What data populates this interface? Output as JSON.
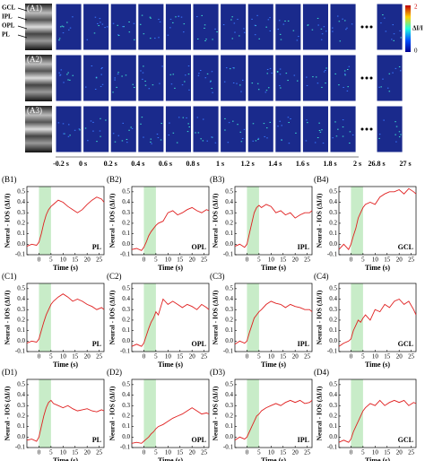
{
  "image_panel": {
    "row_labels": [
      "(A1)",
      "(A2)",
      "(A3)"
    ],
    "layer_labels": [
      "GCL",
      "IPL",
      "OPL",
      "PL"
    ],
    "time_labels": [
      "-0.2 s",
      "0 s",
      "0.2 s",
      "0.4 s",
      "0.6 s",
      "0.8 s",
      "1 s",
      "1.2 s",
      "1.4 s",
      "1.6 s",
      "1.8 s",
      "2 s",
      "26.8 s",
      "27 s"
    ],
    "colorbar": {
      "label": "ΔI/I",
      "max_label": "2",
      "min_label": "0"
    }
  },
  "chart_data": [
    {
      "type": "line",
      "panel": "(B1)",
      "layer": "PL",
      "y_label": "Neural - IOS (ΔI/I)",
      "x_label": "Time (s)",
      "color": "#e02020",
      "stim": [
        0,
        5
      ],
      "xlim": [
        -5,
        27
      ],
      "ylim": [
        -0.1,
        0.55
      ],
      "xticks": [
        0,
        5,
        10,
        15,
        20,
        25
      ],
      "yticks": [
        -0.1,
        {
          "value": 0,
          "label": "0.0"
        },
        0.1,
        0.2,
        0.3,
        0.4,
        0.5
      ],
      "x": [
        -5,
        -3,
        -1,
        0,
        1,
        2,
        3,
        4,
        5,
        6,
        8,
        10,
        12,
        14,
        16,
        18,
        20,
        22,
        24,
        26,
        27
      ],
      "values": [
        -0.02,
        0.0,
        -0.01,
        0.02,
        0.1,
        0.2,
        0.28,
        0.33,
        0.36,
        0.38,
        0.42,
        0.4,
        0.36,
        0.33,
        0.3,
        0.33,
        0.38,
        0.42,
        0.45,
        0.43,
        0.4
      ]
    },
    {
      "type": "line",
      "panel": "(B2)",
      "layer": "OPL",
      "y_label": "Neural - IOS (ΔI/I)",
      "x_label": "Time (s)",
      "color": "#e02020",
      "stim": [
        0,
        5
      ],
      "xlim": [
        -5,
        27
      ],
      "ylim": [
        -0.1,
        0.55
      ],
      "xticks": [
        0,
        5,
        10,
        15,
        20,
        25
      ],
      "yticks": [
        -0.1,
        {
          "value": 0,
          "label": "0.0"
        },
        0.1,
        0.2,
        0.3,
        0.4,
        0.5
      ],
      "x": [
        -5,
        -3,
        -1,
        0,
        1,
        2,
        3,
        4,
        5,
        6,
        8,
        10,
        12,
        14,
        16,
        18,
        20,
        22,
        24,
        26,
        27
      ],
      "values": [
        -0.05,
        -0.04,
        -0.06,
        -0.03,
        0.02,
        0.08,
        0.12,
        0.15,
        0.18,
        0.2,
        0.22,
        0.3,
        0.32,
        0.28,
        0.3,
        0.33,
        0.35,
        0.32,
        0.3,
        0.33,
        0.32
      ]
    },
    {
      "type": "line",
      "panel": "(B3)",
      "layer": "IPL",
      "y_label": "Neural - IOS (ΔI/I)",
      "x_label": "Time (s)",
      "color": "#e02020",
      "stim": [
        0,
        5
      ],
      "xlim": [
        -5,
        27
      ],
      "ylim": [
        -0.1,
        0.55
      ],
      "xticks": [
        0,
        5,
        10,
        15,
        20,
        25
      ],
      "yticks": [
        -0.1,
        {
          "value": 0,
          "label": "0.0"
        },
        0.1,
        0.2,
        0.3,
        0.4,
        0.5
      ],
      "x": [
        -5,
        -3,
        -1,
        0,
        1,
        2,
        3,
        4,
        5,
        6,
        8,
        10,
        12,
        14,
        16,
        18,
        20,
        22,
        24,
        26,
        27
      ],
      "values": [
        -0.02,
        0.0,
        -0.03,
        0.0,
        0.1,
        0.2,
        0.3,
        0.35,
        0.37,
        0.35,
        0.38,
        0.36,
        0.3,
        0.32,
        0.28,
        0.3,
        0.25,
        0.28,
        0.3,
        0.3,
        0.32
      ]
    },
    {
      "type": "line",
      "panel": "(B4)",
      "layer": "GCL",
      "y_label": "Neural - IOS (ΔI/I)",
      "x_label": "Time (s)",
      "color": "#e02020",
      "stim": [
        0,
        5
      ],
      "xlim": [
        -5,
        27
      ],
      "ylim": [
        -0.1,
        0.55
      ],
      "xticks": [
        0,
        5,
        10,
        15,
        20,
        25
      ],
      "yticks": [
        -0.1,
        {
          "value": 0,
          "label": "0.0"
        },
        0.1,
        0.2,
        0.3,
        0.4,
        0.5
      ],
      "x": [
        -5,
        -3,
        -1,
        0,
        1,
        2,
        3,
        4,
        5,
        6,
        8,
        10,
        12,
        14,
        16,
        18,
        20,
        22,
        24,
        26,
        27
      ],
      "values": [
        -0.05,
        0.0,
        -0.05,
        0.0,
        0.08,
        0.15,
        0.25,
        0.3,
        0.35,
        0.38,
        0.4,
        0.38,
        0.45,
        0.48,
        0.5,
        0.5,
        0.52,
        0.48,
        0.53,
        0.5,
        0.48
      ]
    },
    {
      "type": "line",
      "panel": "(C1)",
      "layer": "PL",
      "y_label": "Neural - IOS (ΔI/I)",
      "x_label": "Time (s)",
      "color": "#e02020",
      "stim": [
        0,
        5
      ],
      "xlim": [
        -5,
        27
      ],
      "ylim": [
        -0.1,
        0.55
      ],
      "xticks": [
        0,
        5,
        10,
        15,
        20,
        25
      ],
      "yticks": [
        -0.1,
        {
          "value": 0,
          "label": "0.0"
        },
        0.1,
        0.2,
        0.3,
        0.4,
        0.5
      ],
      "x": [
        -5,
        -3,
        -1,
        0,
        1,
        2,
        3,
        4,
        5,
        6,
        8,
        10,
        12,
        14,
        16,
        18,
        20,
        22,
        24,
        26,
        27
      ],
      "values": [
        -0.02,
        0.0,
        -0.01,
        0.02,
        0.1,
        0.18,
        0.25,
        0.3,
        0.35,
        0.38,
        0.42,
        0.45,
        0.42,
        0.38,
        0.4,
        0.38,
        0.35,
        0.33,
        0.3,
        0.32,
        0.3
      ]
    },
    {
      "type": "line",
      "panel": "(C2)",
      "layer": "OPL",
      "y_label": "Neural - IOS (ΔI/I)",
      "x_label": "Time (s)",
      "color": "#e02020",
      "stim": [
        0,
        5
      ],
      "xlim": [
        -5,
        27
      ],
      "ylim": [
        -0.1,
        0.55
      ],
      "xticks": [
        0,
        5,
        10,
        15,
        20,
        25
      ],
      "yticks": [
        -0.1,
        {
          "value": 0,
          "label": "0.0"
        },
        0.1,
        0.2,
        0.3,
        0.4,
        0.5
      ],
      "x": [
        -5,
        -3,
        -1,
        0,
        1,
        2,
        3,
        4,
        5,
        6,
        8,
        10,
        12,
        14,
        16,
        18,
        20,
        22,
        24,
        26,
        27
      ],
      "values": [
        -0.05,
        -0.03,
        -0.05,
        -0.02,
        0.05,
        0.12,
        0.18,
        0.22,
        0.28,
        0.25,
        0.4,
        0.35,
        0.38,
        0.35,
        0.32,
        0.35,
        0.33,
        0.3,
        0.35,
        0.32,
        0.3
      ]
    },
    {
      "type": "line",
      "panel": "(C3)",
      "layer": "IPL",
      "y_label": "Neural - IOS (ΔI/I)",
      "x_label": "Time (s)",
      "color": "#e02020",
      "stim": [
        0,
        5
      ],
      "xlim": [
        -5,
        27
      ],
      "ylim": [
        -0.1,
        0.55
      ],
      "xticks": [
        0,
        5,
        10,
        15,
        20,
        25
      ],
      "yticks": [
        -0.1,
        {
          "value": 0,
          "label": "0.0"
        },
        0.1,
        0.2,
        0.3,
        0.4,
        0.5
      ],
      "x": [
        -5,
        -3,
        -1,
        0,
        1,
        2,
        3,
        4,
        5,
        6,
        8,
        10,
        12,
        14,
        16,
        18,
        20,
        22,
        24,
        26,
        27
      ],
      "values": [
        -0.03,
        0.0,
        -0.02,
        0.0,
        0.08,
        0.15,
        0.22,
        0.25,
        0.28,
        0.3,
        0.35,
        0.38,
        0.36,
        0.35,
        0.32,
        0.35,
        0.33,
        0.32,
        0.3,
        0.3,
        0.28
      ]
    },
    {
      "type": "line",
      "panel": "(C4)",
      "layer": "GCL",
      "y_label": "Neural - IOS (ΔI/I)",
      "x_label": "Time (s)",
      "color": "#e02020",
      "stim": [
        0,
        5
      ],
      "xlim": [
        -5,
        27
      ],
      "ylim": [
        -0.1,
        0.55
      ],
      "xticks": [
        0,
        5,
        10,
        15,
        20,
        25
      ],
      "yticks": [
        -0.1,
        {
          "value": 0,
          "label": "0.0"
        },
        0.1,
        0.2,
        0.3,
        0.4,
        0.5
      ],
      "x": [
        -5,
        -3,
        -1,
        0,
        1,
        2,
        3,
        4,
        5,
        6,
        8,
        10,
        12,
        14,
        16,
        18,
        20,
        22,
        24,
        26,
        27
      ],
      "values": [
        -0.05,
        -0.02,
        0.0,
        0.02,
        0.1,
        0.15,
        0.2,
        0.18,
        0.22,
        0.25,
        0.2,
        0.3,
        0.28,
        0.35,
        0.32,
        0.38,
        0.4,
        0.35,
        0.38,
        0.3,
        0.25
      ]
    },
    {
      "type": "line",
      "panel": "(D1)",
      "layer": "PL",
      "y_label": "Neural - IOS (ΔI/I)",
      "x_label": "Time (s)",
      "color": "#e02020",
      "stim": [
        0,
        5
      ],
      "xlim": [
        -5,
        27
      ],
      "ylim": [
        -0.1,
        0.55
      ],
      "xticks": [
        0,
        5,
        10,
        15,
        20,
        25
      ],
      "yticks": [
        -0.1,
        {
          "value": 0,
          "label": "0.0"
        },
        0.1,
        0.2,
        0.3,
        0.4,
        0.5
      ],
      "x": [
        -5,
        -3,
        -1,
        0,
        1,
        2,
        3,
        4,
        5,
        6,
        8,
        10,
        12,
        14,
        16,
        18,
        20,
        22,
        24,
        26,
        27
      ],
      "values": [
        -0.03,
        -0.02,
        -0.04,
        0.0,
        0.1,
        0.2,
        0.28,
        0.33,
        0.35,
        0.32,
        0.3,
        0.28,
        0.3,
        0.27,
        0.25,
        0.26,
        0.27,
        0.25,
        0.24,
        0.26,
        0.25
      ]
    },
    {
      "type": "line",
      "panel": "(D2)",
      "layer": "OPL",
      "y_label": "Neural - IOS (ΔI/I)",
      "x_label": "Time (s)",
      "color": "#e02020",
      "stim": [
        0,
        5
      ],
      "xlim": [
        -5,
        27
      ],
      "ylim": [
        -0.1,
        0.55
      ],
      "xticks": [
        0,
        5,
        10,
        15,
        20,
        25
      ],
      "yticks": [
        -0.1,
        {
          "value": 0,
          "label": "0.0"
        },
        0.1,
        0.2,
        0.3,
        0.4,
        0.5
      ],
      "x": [
        -5,
        -3,
        -1,
        0,
        1,
        2,
        3,
        4,
        5,
        6,
        8,
        10,
        12,
        14,
        16,
        18,
        20,
        22,
        24,
        26,
        27
      ],
      "values": [
        -0.06,
        -0.05,
        -0.06,
        -0.04,
        -0.02,
        0.0,
        0.03,
        0.05,
        0.08,
        0.1,
        0.12,
        0.15,
        0.18,
        0.2,
        0.22,
        0.25,
        0.28,
        0.25,
        0.22,
        0.23,
        0.22
      ]
    },
    {
      "type": "line",
      "panel": "(D3)",
      "layer": "IPL",
      "y_label": "Neural - IOS (ΔI/I)",
      "x_label": "Time (s)",
      "color": "#e02020",
      "stim": [
        0,
        5
      ],
      "xlim": [
        -5,
        27
      ],
      "ylim": [
        -0.1,
        0.55
      ],
      "xticks": [
        0,
        5,
        10,
        15,
        20,
        25
      ],
      "yticks": [
        -0.1,
        {
          "value": 0,
          "label": "0.0"
        },
        0.1,
        0.2,
        0.3,
        0.4,
        0.5
      ],
      "x": [
        -5,
        -3,
        -1,
        0,
        1,
        2,
        3,
        4,
        5,
        6,
        8,
        10,
        12,
        14,
        16,
        18,
        20,
        22,
        24,
        26,
        27
      ],
      "values": [
        -0.03,
        0.0,
        -0.02,
        0.0,
        0.05,
        0.1,
        0.15,
        0.2,
        0.22,
        0.25,
        0.28,
        0.3,
        0.32,
        0.3,
        0.33,
        0.35,
        0.33,
        0.35,
        0.32,
        0.33,
        0.35
      ]
    },
    {
      "type": "line",
      "panel": "(D4)",
      "layer": "GCL",
      "y_label": "Neural - IOS (ΔI/I)",
      "x_label": "Time (s)",
      "color": "#e02020",
      "stim": [
        0,
        5
      ],
      "xlim": [
        -5,
        27
      ],
      "ylim": [
        -0.1,
        0.55
      ],
      "xticks": [
        0,
        5,
        10,
        15,
        20,
        25
      ],
      "yticks": [
        -0.1,
        {
          "value": 0,
          "label": "0.0"
        },
        0.1,
        0.2,
        0.3,
        0.4,
        0.5
      ],
      "x": [
        -5,
        -3,
        -1,
        0,
        1,
        2,
        3,
        4,
        5,
        6,
        8,
        10,
        12,
        14,
        16,
        18,
        20,
        22,
        24,
        26,
        27
      ],
      "values": [
        -0.05,
        -0.03,
        -0.05,
        -0.02,
        0.05,
        0.1,
        0.15,
        0.2,
        0.25,
        0.28,
        0.32,
        0.3,
        0.35,
        0.3,
        0.33,
        0.35,
        0.33,
        0.35,
        0.3,
        0.33,
        0.32
      ]
    }
  ]
}
